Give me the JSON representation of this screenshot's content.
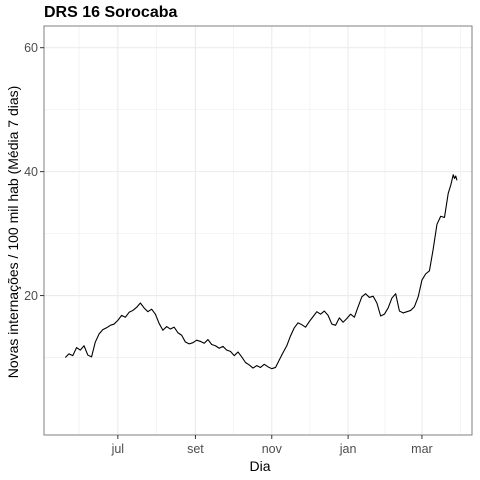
{
  "chart_data": {
    "type": "line",
    "title": "DRS 16 Sorocaba",
    "xlabel": "Dia",
    "ylabel": "Novas internações / 100 mil hab (Média 7 dias)",
    "x_axis": {
      "type": "date",
      "range": [
        "2020-05-03",
        "2021-04-10"
      ],
      "ticks": [
        {
          "date": "2020-07-01",
          "label": "jul"
        },
        {
          "date": "2020-09-01",
          "label": "set"
        },
        {
          "date": "2020-11-01",
          "label": "nov"
        },
        {
          "date": "2021-01-01",
          "label": "jan"
        },
        {
          "date": "2021-03-01",
          "label": "mar"
        }
      ]
    },
    "y_axis": {
      "range": [
        -2.5,
        63.5
      ],
      "ticks": [
        20,
        40,
        60
      ]
    },
    "grid": true,
    "colors": {
      "line": "#000000",
      "panel_border": "#7f7f7f",
      "grid": "#ebebeb",
      "background": "#ffffff"
    },
    "series": [
      {
        "points": [
          [
            "2020-05-20",
            10.0
          ],
          [
            "2020-05-23",
            10.6
          ],
          [
            "2020-05-26",
            10.3
          ],
          [
            "2020-05-29",
            11.6
          ],
          [
            "2020-06-01",
            11.2
          ],
          [
            "2020-06-04",
            11.9
          ],
          [
            "2020-06-07",
            10.4
          ],
          [
            "2020-06-10",
            10.1
          ],
          [
            "2020-06-13",
            12.5
          ],
          [
            "2020-06-16",
            13.8
          ],
          [
            "2020-06-19",
            14.5
          ],
          [
            "2020-06-22",
            14.8
          ],
          [
            "2020-06-25",
            15.2
          ],
          [
            "2020-06-28",
            15.4
          ],
          [
            "2020-07-01",
            16.0
          ],
          [
            "2020-07-04",
            16.8
          ],
          [
            "2020-07-07",
            16.5
          ],
          [
            "2020-07-10",
            17.3
          ],
          [
            "2020-07-13",
            17.6
          ],
          [
            "2020-07-16",
            18.1
          ],
          [
            "2020-07-19",
            18.8
          ],
          [
            "2020-07-22",
            18.0
          ],
          [
            "2020-07-25",
            17.4
          ],
          [
            "2020-07-28",
            17.8
          ],
          [
            "2020-07-31",
            17.0
          ],
          [
            "2020-08-03",
            15.5
          ],
          [
            "2020-08-06",
            14.4
          ],
          [
            "2020-08-09",
            15.0
          ],
          [
            "2020-08-12",
            14.6
          ],
          [
            "2020-08-15",
            14.9
          ],
          [
            "2020-08-18",
            14.0
          ],
          [
            "2020-08-21",
            13.6
          ],
          [
            "2020-08-24",
            12.5
          ],
          [
            "2020-08-27",
            12.2
          ],
          [
            "2020-08-30",
            12.4
          ],
          [
            "2020-09-02",
            12.8
          ],
          [
            "2020-09-05",
            12.6
          ],
          [
            "2020-09-08",
            12.3
          ],
          [
            "2020-09-11",
            12.9
          ],
          [
            "2020-09-14",
            12.1
          ],
          [
            "2020-09-17",
            11.9
          ],
          [
            "2020-09-20",
            11.5
          ],
          [
            "2020-09-23",
            11.8
          ],
          [
            "2020-09-26",
            11.2
          ],
          [
            "2020-09-29",
            11.0
          ],
          [
            "2020-10-02",
            10.3
          ],
          [
            "2020-10-05",
            10.9
          ],
          [
            "2020-10-08",
            10.1
          ],
          [
            "2020-10-11",
            9.2
          ],
          [
            "2020-10-14",
            8.8
          ],
          [
            "2020-10-17",
            8.3
          ],
          [
            "2020-10-20",
            8.7
          ],
          [
            "2020-10-23",
            8.4
          ],
          [
            "2020-10-26",
            8.9
          ],
          [
            "2020-10-29",
            8.5
          ],
          [
            "2020-11-01",
            8.2
          ],
          [
            "2020-11-04",
            8.4
          ],
          [
            "2020-11-07",
            9.6
          ],
          [
            "2020-11-10",
            10.8
          ],
          [
            "2020-11-13",
            11.9
          ],
          [
            "2020-11-16",
            13.5
          ],
          [
            "2020-11-19",
            14.8
          ],
          [
            "2020-11-22",
            15.6
          ],
          [
            "2020-11-25",
            15.3
          ],
          [
            "2020-11-28",
            14.9
          ],
          [
            "2020-12-01",
            15.8
          ],
          [
            "2020-12-04",
            16.6
          ],
          [
            "2020-12-07",
            17.4
          ],
          [
            "2020-12-10",
            17.0
          ],
          [
            "2020-12-13",
            17.5
          ],
          [
            "2020-12-16",
            16.8
          ],
          [
            "2020-12-19",
            15.4
          ],
          [
            "2020-12-22",
            15.2
          ],
          [
            "2020-12-25",
            16.4
          ],
          [
            "2020-12-28",
            15.7
          ],
          [
            "2020-12-31",
            16.3
          ],
          [
            "2021-01-03",
            17.0
          ],
          [
            "2021-01-06",
            16.5
          ],
          [
            "2021-01-09",
            18.2
          ],
          [
            "2021-01-12",
            19.8
          ],
          [
            "2021-01-15",
            20.3
          ],
          [
            "2021-01-18",
            19.7
          ],
          [
            "2021-01-21",
            19.9
          ],
          [
            "2021-01-24",
            18.8
          ],
          [
            "2021-01-27",
            16.7
          ],
          [
            "2021-01-30",
            17.0
          ],
          [
            "2021-02-02",
            18.0
          ],
          [
            "2021-02-05",
            19.6
          ],
          [
            "2021-02-08",
            20.3
          ],
          [
            "2021-02-11",
            17.5
          ],
          [
            "2021-02-14",
            17.2
          ],
          [
            "2021-02-17",
            17.4
          ],
          [
            "2021-02-20",
            17.6
          ],
          [
            "2021-02-23",
            18.2
          ],
          [
            "2021-02-26",
            19.8
          ],
          [
            "2021-03-01",
            22.5
          ],
          [
            "2021-03-04",
            23.5
          ],
          [
            "2021-03-07",
            24.0
          ],
          [
            "2021-03-10",
            27.5
          ],
          [
            "2021-03-13",
            31.5
          ],
          [
            "2021-03-16",
            32.8
          ],
          [
            "2021-03-19",
            32.6
          ],
          [
            "2021-03-22",
            36.5
          ],
          [
            "2021-03-24",
            37.8
          ],
          [
            "2021-03-26",
            39.5
          ],
          [
            "2021-03-27",
            38.9
          ],
          [
            "2021-03-28",
            39.3
          ],
          [
            "2021-03-29",
            38.6
          ]
        ]
      }
    ]
  }
}
